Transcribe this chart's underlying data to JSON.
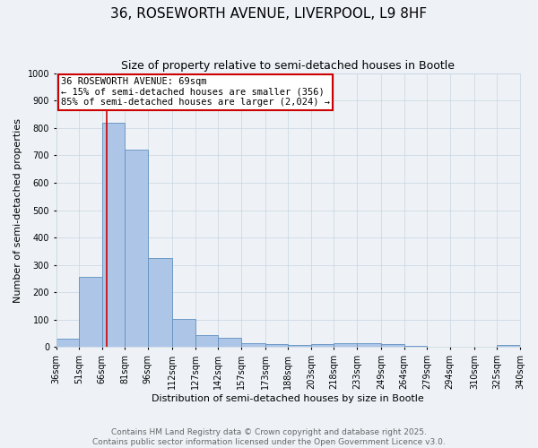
{
  "title1": "36, ROSEWORTH AVENUE, LIVERPOOL, L9 8HF",
  "title2": "Size of property relative to semi-detached houses in Bootle",
  "xlabel": "Distribution of semi-detached houses by size in Bootle",
  "ylabel": "Number of semi-detached properties",
  "bin_edges": [
    36,
    51,
    66,
    81,
    96,
    112,
    127,
    142,
    157,
    173,
    188,
    203,
    218,
    233,
    249,
    264,
    279,
    294,
    310,
    325,
    340
  ],
  "bin_labels": [
    "36sqm",
    "51sqm",
    "66sqm",
    "81sqm",
    "96sqm",
    "112sqm",
    "127sqm",
    "142sqm",
    "157sqm",
    "173sqm",
    "188sqm",
    "203sqm",
    "218sqm",
    "233sqm",
    "249sqm",
    "264sqm",
    "279sqm",
    "294sqm",
    "310sqm",
    "325sqm",
    "340sqm"
  ],
  "counts": [
    30,
    255,
    820,
    720,
    325,
    103,
    44,
    35,
    15,
    10,
    7,
    10,
    15,
    15,
    10,
    5,
    3,
    3,
    1,
    8
  ],
  "bar_color": "#adc6e8",
  "bar_edge_color": "#6090be",
  "vline_x": 69,
  "vline_color": "#cc0000",
  "annotation_text": "36 ROSEWORTH AVENUE: 69sqm\n← 15% of semi-detached houses are smaller (356)\n85% of semi-detached houses are larger (2,024) →",
  "annotation_box_color": "#ffffff",
  "annotation_border_color": "#cc0000",
  "ylim": [
    0,
    1000
  ],
  "yticks": [
    0,
    100,
    200,
    300,
    400,
    500,
    600,
    700,
    800,
    900,
    1000
  ],
  "grid_color": "#c8d4e0",
  "background_color": "#eef2f7",
  "footer1": "Contains HM Land Registry data © Crown copyright and database right 2025.",
  "footer2": "Contains public sector information licensed under the Open Government Licence v3.0.",
  "title1_fontsize": 11,
  "title2_fontsize": 9,
  "axis_label_fontsize": 8,
  "tick_fontsize": 7,
  "annotation_fontsize": 7.5,
  "footer_fontsize": 6.5
}
